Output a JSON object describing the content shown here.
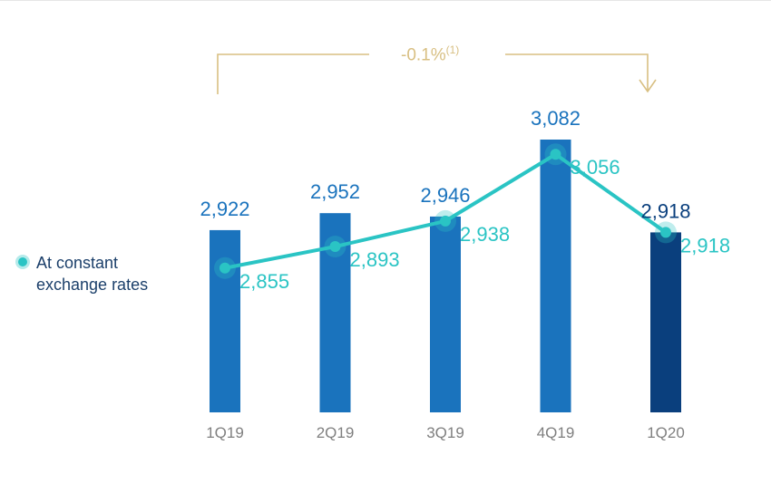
{
  "colors": {
    "bar": "#1a73bd",
    "bar_highlight": "#0a3f7d",
    "line": "#2ac4c4",
    "bar_label": "#1a73bd",
    "line_label": "#2ac4c4",
    "bracket": "#d8bf82",
    "axis_text": "#7f7f7f"
  },
  "legend": {
    "label": "At constant exchange rates",
    "marker_icon": "circle-marker-icon"
  },
  "change": {
    "value": "-0.1%",
    "note": "(1)"
  },
  "chart_data": {
    "type": "bar",
    "categories": [
      "1Q19",
      "2Q19",
      "3Q19",
      "4Q19",
      "1Q20"
    ],
    "series": [
      {
        "values": [
          2922,
          2952,
          2946,
          3082,
          2918
        ],
        "labels": [
          "2,922",
          "2,952",
          "2,946",
          "3,082",
          "2,918"
        ]
      },
      {
        "name": "At constant exchange rates",
        "type": "line",
        "values": [
          2855,
          2893,
          2938,
          3056,
          2918
        ],
        "labels": [
          "2,855",
          "2,893",
          "2,938",
          "3,056",
          "2,918"
        ]
      }
    ],
    "highlight_category": "1Q20",
    "annotation": "-0.1%(1)",
    "grid": false
  }
}
